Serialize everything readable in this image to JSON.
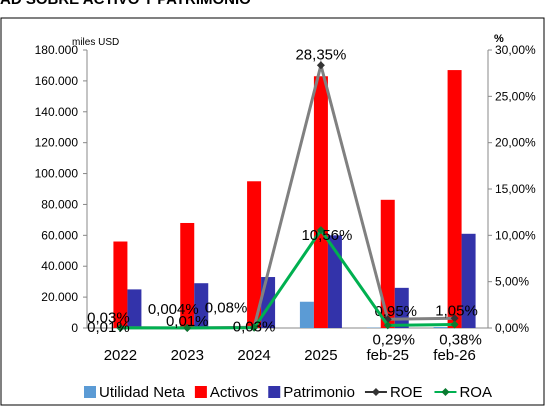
{
  "chart_data": {
    "type": "bar",
    "title": "AD SOBRE ACTIVO Y PATRIMONIO",
    "categories": [
      "2022",
      "2023",
      "2024",
      "2025",
      "feb-25",
      "feb-26"
    ],
    "y_left": {
      "label": "miles USD",
      "ylim": [
        0,
        180000
      ],
      "ticks": [
        "0",
        "20.000",
        "40.000",
        "60.000",
        "80.000",
        "100.000",
        "120.000",
        "140.000",
        "160.000",
        "180.000"
      ]
    },
    "y_right": {
      "label": "%",
      "ylim": [
        0,
        30
      ],
      "ticks": [
        "0,00%",
        "5,00%",
        "10,00%",
        "15,00%",
        "20,00%",
        "25,00%",
        "30,00%"
      ]
    },
    "bar_series": [
      {
        "name": "Utilidad Neta",
        "color": "#5b9bd5",
        "values": [
          10,
          3,
          28,
          17000,
          240,
          640
        ]
      },
      {
        "name": "Activos",
        "color": "#ff0000",
        "values": [
          56000,
          68000,
          95000,
          163000,
          83000,
          167000
        ]
      },
      {
        "name": "Patrimonio",
        "color": "#3333aa",
        "values": [
          25000,
          29000,
          33000,
          60000,
          26000,
          61000
        ]
      }
    ],
    "line_series": [
      {
        "name": "ROE",
        "color": "#808080",
        "values": [
          0.03,
          0.004,
          0.08,
          28.35,
          0.95,
          1.05
        ],
        "labels": [
          "0,03%",
          "0,004%",
          "0,08%",
          "28,35%",
          "0,95%",
          "1,05%"
        ]
      },
      {
        "name": "ROA",
        "color": "#00b050",
        "values": [
          0.01,
          0.01,
          0.03,
          10.56,
          0.29,
          0.38
        ],
        "labels": [
          "0,01%",
          "0,01%",
          "0,03%",
          "10,56%",
          "0,29%",
          "0,38%"
        ]
      }
    ],
    "legend": [
      "Utilidad Neta",
      "Activos",
      "Patrimonio",
      "ROE",
      "ROA"
    ],
    "legend_position": "bottom",
    "grid": false
  }
}
